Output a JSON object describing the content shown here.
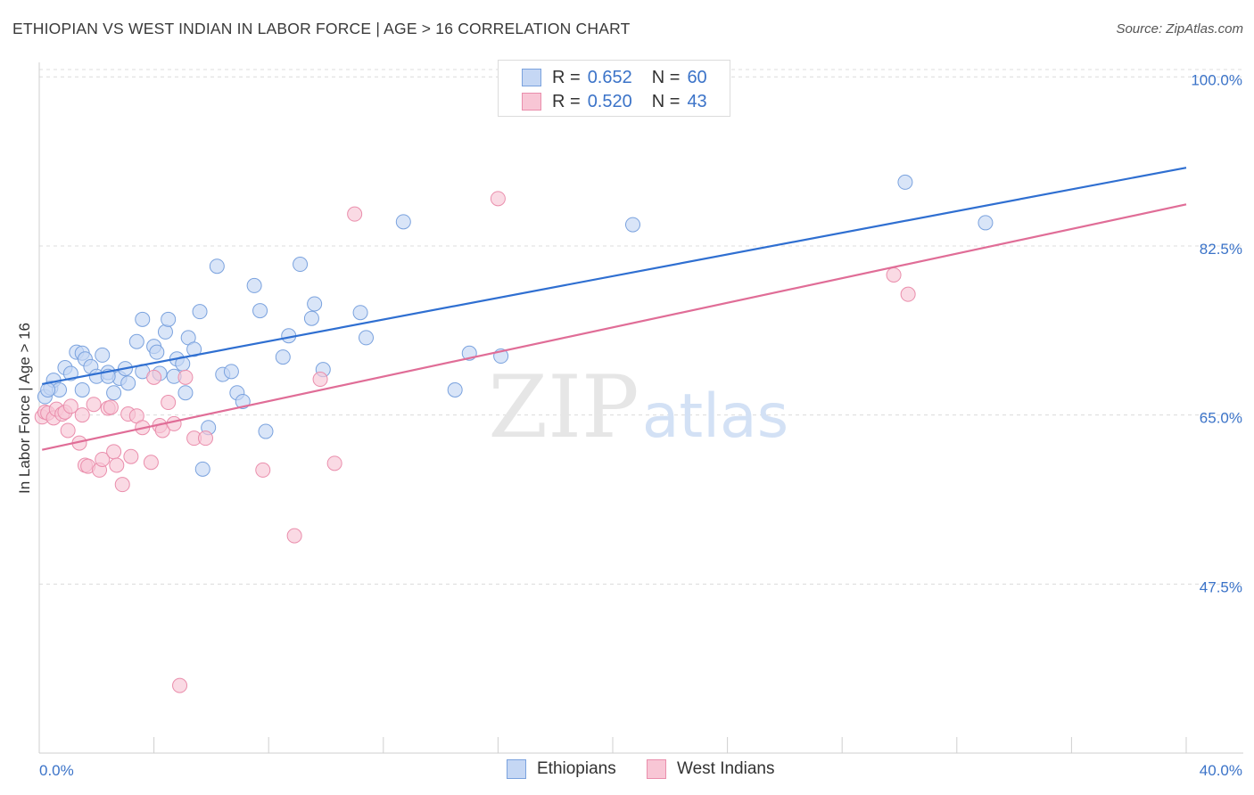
{
  "header": {
    "title": "ETHIOPIAN VS WEST INDIAN IN LABOR FORCE | AGE > 16 CORRELATION CHART",
    "source": "Source: ZipAtlas.com"
  },
  "watermark": {
    "zip": "ZIP",
    "atlas": "atlas"
  },
  "legend": {
    "r_label": "R =",
    "n_label": "N =",
    "rows": [
      {
        "r": "0.652",
        "n": "60"
      },
      {
        "r": "0.520",
        "n": "43"
      }
    ]
  },
  "colors": {
    "ethiopians_fill": "#c5d7f4",
    "ethiopians_stroke": "#7aa2de",
    "ethiopians_line": "#2f6fd1",
    "westindians_fill": "#f8c6d5",
    "westindians_stroke": "#ea8eac",
    "westindians_line": "#e06d97",
    "tick_label": "#3b73c8",
    "grid": "#dcdcdc"
  },
  "chart_data": {
    "type": "scatter",
    "title": "ETHIOPIAN VS WEST INDIAN IN LABOR FORCE | AGE > 16 CORRELATION CHART",
    "xlabel": "",
    "ylabel": "In Labor Force | Age > 16",
    "xlim": [
      0,
      40
    ],
    "ylim": [
      30,
      101.5
    ],
    "x_tick_labels": [
      "0.0%",
      "40.0%"
    ],
    "y_ticks": [
      47.5,
      65.0,
      82.5,
      100.0
    ],
    "y_tick_labels": [
      "47.5%",
      "65.0%",
      "82.5%",
      "100.0%"
    ],
    "grid": true,
    "legend_position": "top-center",
    "series": [
      {
        "name": "Ethiopians",
        "r": 0.652,
        "n": 60,
        "trend": {
          "x": [
            0.1,
            40.0
          ],
          "y": [
            68.2,
            90.6
          ]
        },
        "points": [
          [
            0.2,
            66.9
          ],
          [
            0.4,
            67.8
          ],
          [
            0.5,
            68.6
          ],
          [
            0.7,
            67.6
          ],
          [
            0.9,
            69.9
          ],
          [
            1.1,
            69.3
          ],
          [
            1.3,
            71.5
          ],
          [
            1.5,
            71.4
          ],
          [
            1.6,
            70.8
          ],
          [
            1.8,
            70.0
          ],
          [
            2.0,
            69.0
          ],
          [
            2.2,
            71.2
          ],
          [
            2.4,
            69.4
          ],
          [
            2.6,
            67.3
          ],
          [
            2.8,
            68.8
          ],
          [
            3.0,
            69.8
          ],
          [
            3.1,
            68.3
          ],
          [
            3.4,
            72.6
          ],
          [
            3.6,
            69.5
          ],
          [
            3.6,
            74.9
          ],
          [
            4.0,
            72.1
          ],
          [
            4.1,
            71.5
          ],
          [
            4.2,
            69.3
          ],
          [
            4.4,
            73.6
          ],
          [
            4.5,
            74.9
          ],
          [
            4.7,
            69.0
          ],
          [
            4.8,
            70.8
          ],
          [
            5.0,
            70.3
          ],
          [
            5.1,
            67.3
          ],
          [
            5.2,
            73.0
          ],
          [
            5.4,
            71.8
          ],
          [
            5.6,
            75.7
          ],
          [
            5.7,
            59.4
          ],
          [
            5.9,
            63.7
          ],
          [
            6.2,
            80.4
          ],
          [
            6.4,
            69.2
          ],
          [
            6.7,
            69.5
          ],
          [
            6.9,
            67.3
          ],
          [
            7.1,
            66.4
          ],
          [
            7.5,
            78.4
          ],
          [
            7.7,
            75.8
          ],
          [
            7.9,
            63.3
          ],
          [
            8.5,
            71.0
          ],
          [
            8.7,
            73.2
          ],
          [
            9.1,
            80.6
          ],
          [
            9.5,
            75.0
          ],
          [
            9.6,
            76.5
          ],
          [
            9.9,
            69.7
          ],
          [
            11.2,
            75.6
          ],
          [
            11.4,
            73.0
          ],
          [
            12.7,
            85.0
          ],
          [
            14.5,
            67.6
          ],
          [
            15.0,
            71.4
          ],
          [
            16.1,
            71.1
          ],
          [
            20.7,
            84.7
          ],
          [
            30.2,
            89.1
          ],
          [
            33.0,
            84.9
          ],
          [
            0.3,
            67.6
          ],
          [
            1.5,
            67.6
          ],
          [
            2.4,
            69.0
          ]
        ]
      },
      {
        "name": "West Indians",
        "r": 0.52,
        "n": 43,
        "trend": {
          "x": [
            0.1,
            40.0
          ],
          "y": [
            61.4,
            86.8
          ]
        },
        "points": [
          [
            0.1,
            64.8
          ],
          [
            0.2,
            65.3
          ],
          [
            0.3,
            65.2
          ],
          [
            0.5,
            64.7
          ],
          [
            0.6,
            65.6
          ],
          [
            0.8,
            65.1
          ],
          [
            0.9,
            65.3
          ],
          [
            1.0,
            63.4
          ],
          [
            1.1,
            65.9
          ],
          [
            1.4,
            62.1
          ],
          [
            1.5,
            65.0
          ],
          [
            1.6,
            59.8
          ],
          [
            1.7,
            59.7
          ],
          [
            1.9,
            66.1
          ],
          [
            2.1,
            59.3
          ],
          [
            2.2,
            60.4
          ],
          [
            2.4,
            65.7
          ],
          [
            2.5,
            65.8
          ],
          [
            2.6,
            61.2
          ],
          [
            2.7,
            59.8
          ],
          [
            2.9,
            57.8
          ],
          [
            3.1,
            65.1
          ],
          [
            3.2,
            60.7
          ],
          [
            3.4,
            64.9
          ],
          [
            3.6,
            63.7
          ],
          [
            3.9,
            60.1
          ],
          [
            4.0,
            68.9
          ],
          [
            4.2,
            63.9
          ],
          [
            4.3,
            63.4
          ],
          [
            4.5,
            66.3
          ],
          [
            4.7,
            64.1
          ],
          [
            5.1,
            68.9
          ],
          [
            5.4,
            62.6
          ],
          [
            5.8,
            62.6
          ],
          [
            7.8,
            59.3
          ],
          [
            8.9,
            52.5
          ],
          [
            9.8,
            68.7
          ],
          [
            10.3,
            60.0
          ],
          [
            11.0,
            85.8
          ],
          [
            16.0,
            87.4
          ],
          [
            29.8,
            79.5
          ],
          [
            30.3,
            77.5
          ],
          [
            4.9,
            37.0
          ]
        ]
      }
    ]
  }
}
